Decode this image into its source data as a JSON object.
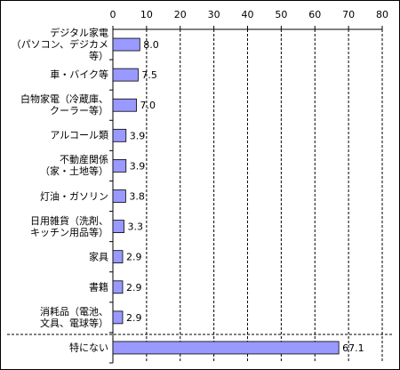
{
  "chart_data": {
    "type": "bar",
    "orientation": "horizontal",
    "categories": [
      "デジタル家電\n（パソコン、デジカメ等）",
      "車・バイク等",
      "白物家電（冷蔵庫、\nクーラー等）",
      "アルコール類",
      "不動産関係\n（家・土地等）",
      "灯油・ガソリン",
      "日用雑貨（洗剤、\nキッチン用品等）",
      "家具",
      "書籍",
      "消耗品（電池、\n文具、電球等）",
      "特にない"
    ],
    "values": [
      8.0,
      7.5,
      7.0,
      3.9,
      3.9,
      3.8,
      3.3,
      2.9,
      2.9,
      2.9,
      67.1
    ],
    "value_labels": [
      "8.0",
      "7.5",
      "7.0",
      "3.9",
      "3.9",
      "3.8",
      "3.3",
      "2.9",
      "2.9",
      "2.9",
      "67.1"
    ],
    "color": "#9999ff",
    "xlim": [
      0,
      80
    ],
    "xticks": [
      0,
      10,
      20,
      30,
      40,
      50,
      60,
      70,
      80
    ],
    "grid": true
  }
}
